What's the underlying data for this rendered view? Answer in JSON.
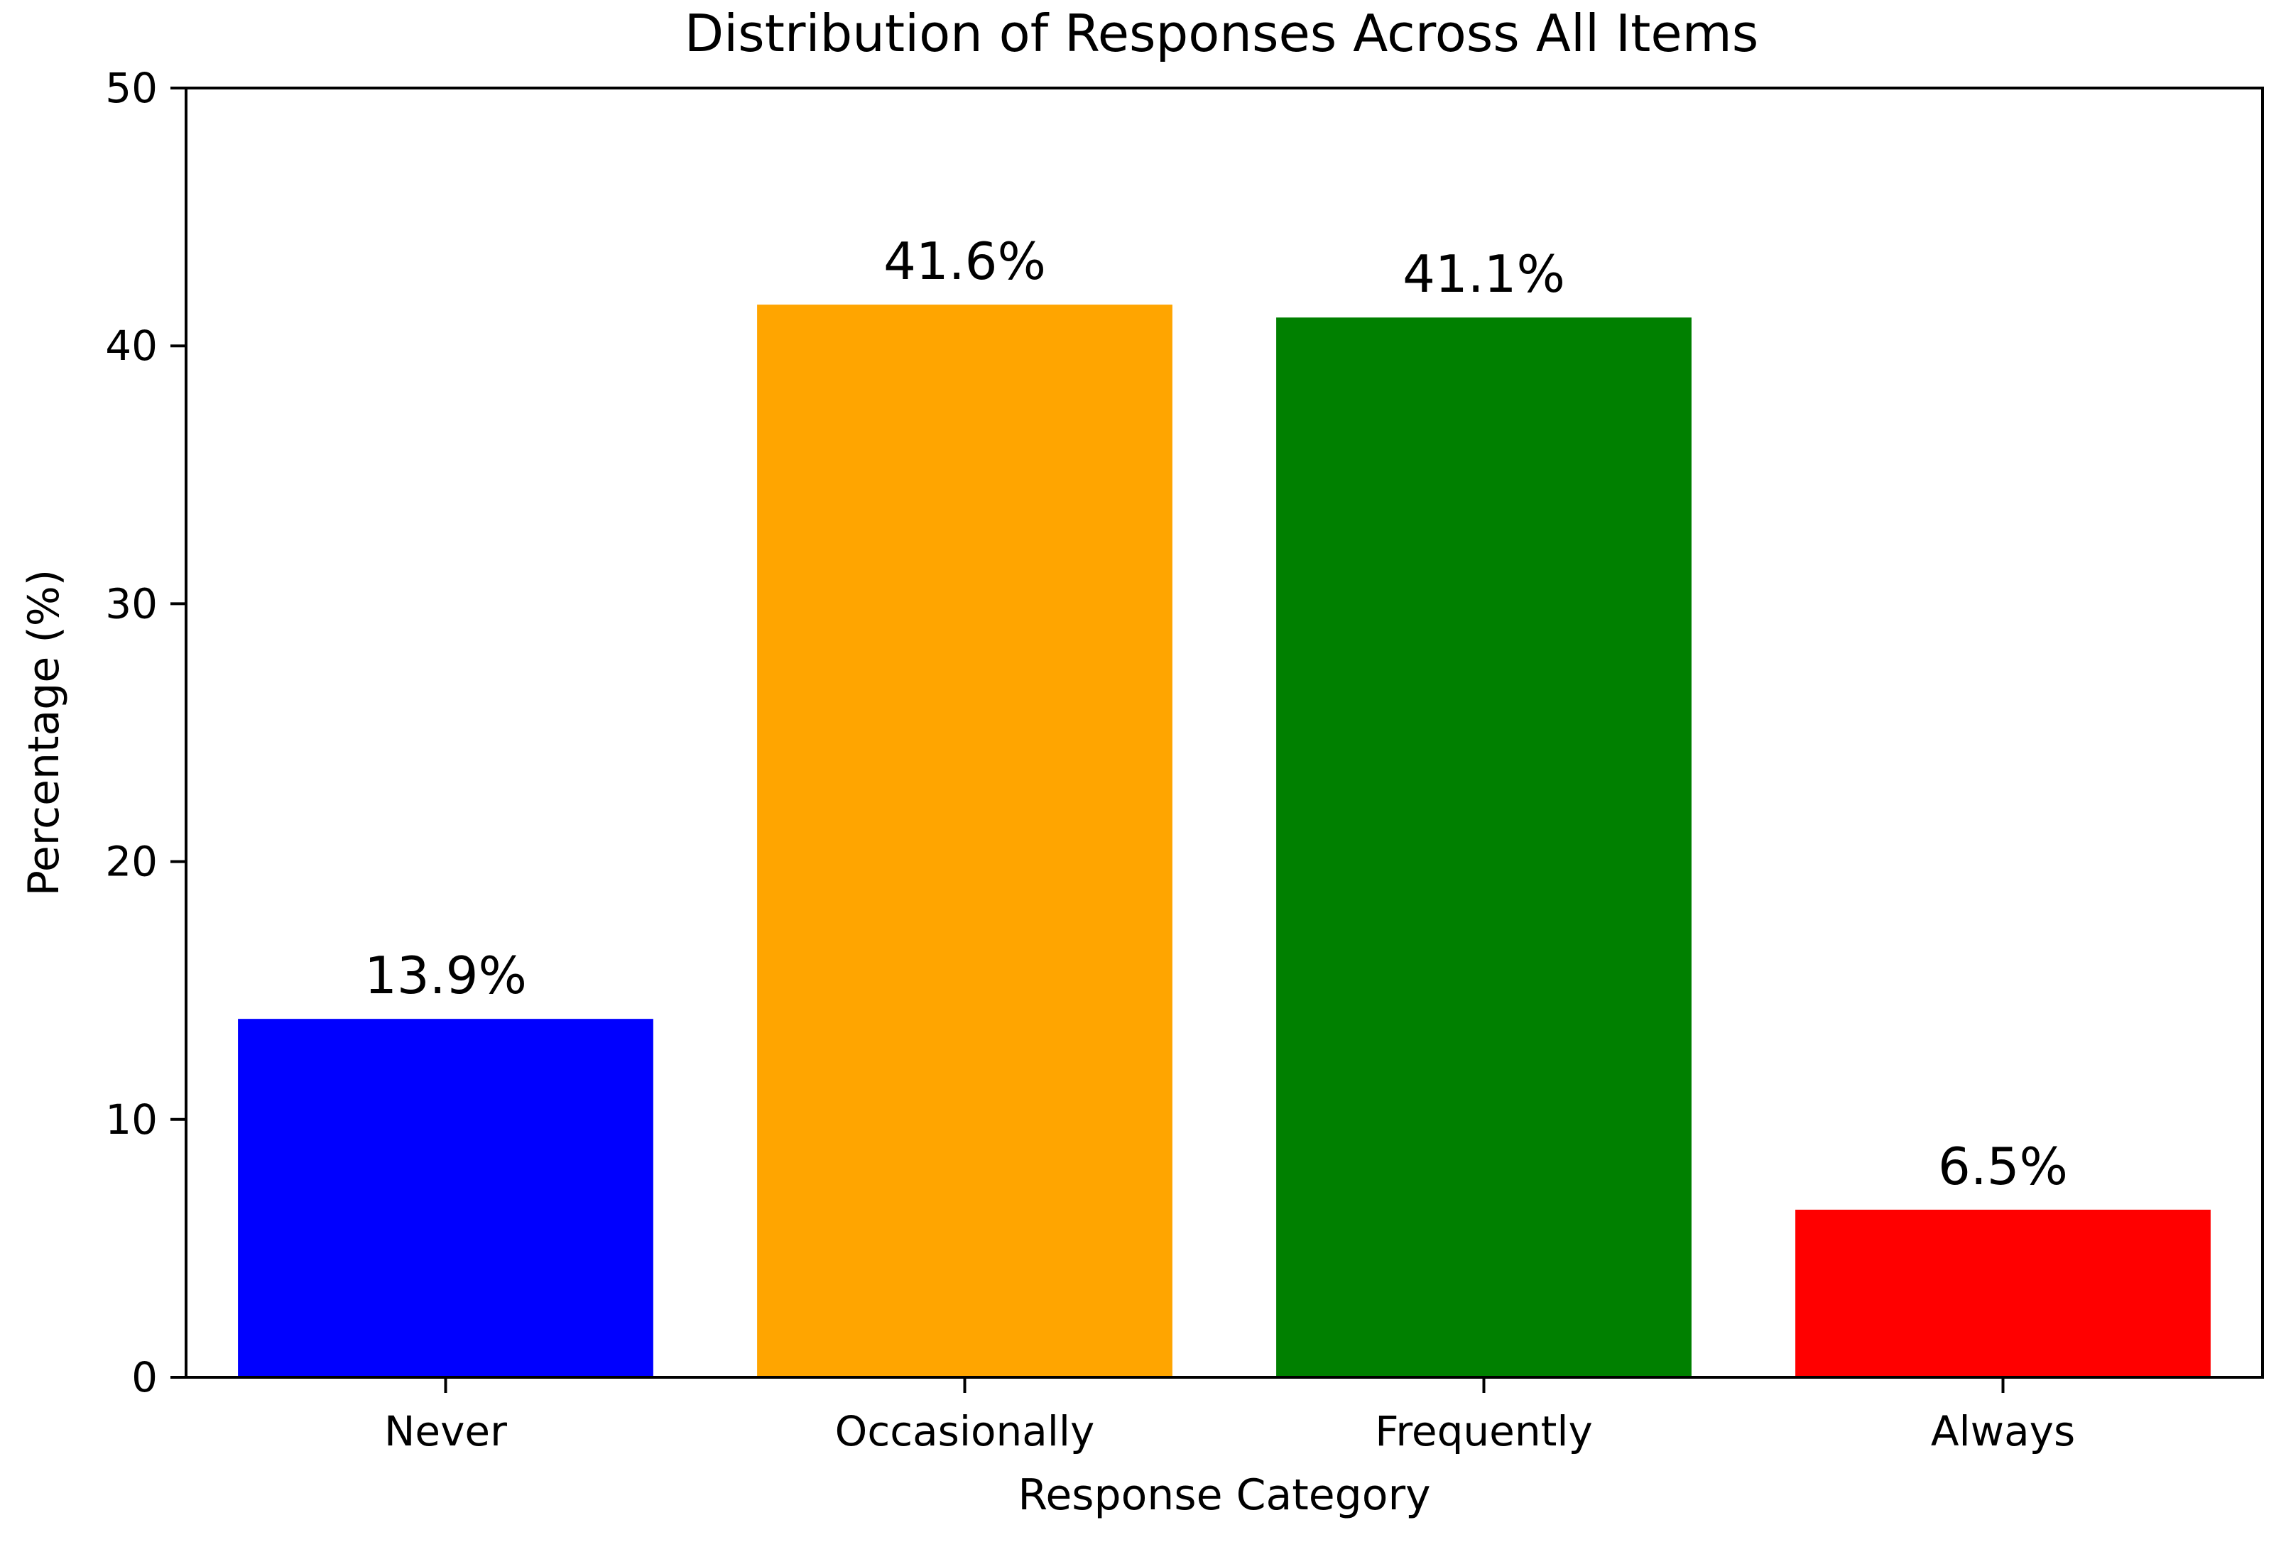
{
  "chart_data": {
    "type": "bar",
    "title": "Distribution of Responses Across All Items",
    "xlabel": "Response Category",
    "ylabel": "Percentage (%)",
    "categories": [
      "Never",
      "Occasionally",
      "Frequently",
      "Always"
    ],
    "values": [
      13.9,
      41.6,
      41.1,
      6.5
    ],
    "value_labels": [
      "13.9%",
      "41.6%",
      "41.1%",
      "6.5%"
    ],
    "colors": [
      "#0000ff",
      "#ffa500",
      "#008000",
      "#ff0000"
    ],
    "ylim": [
      0,
      50
    ],
    "yticks": [
      0,
      10,
      20,
      30,
      40,
      50
    ],
    "grid": false,
    "legend": "none"
  }
}
